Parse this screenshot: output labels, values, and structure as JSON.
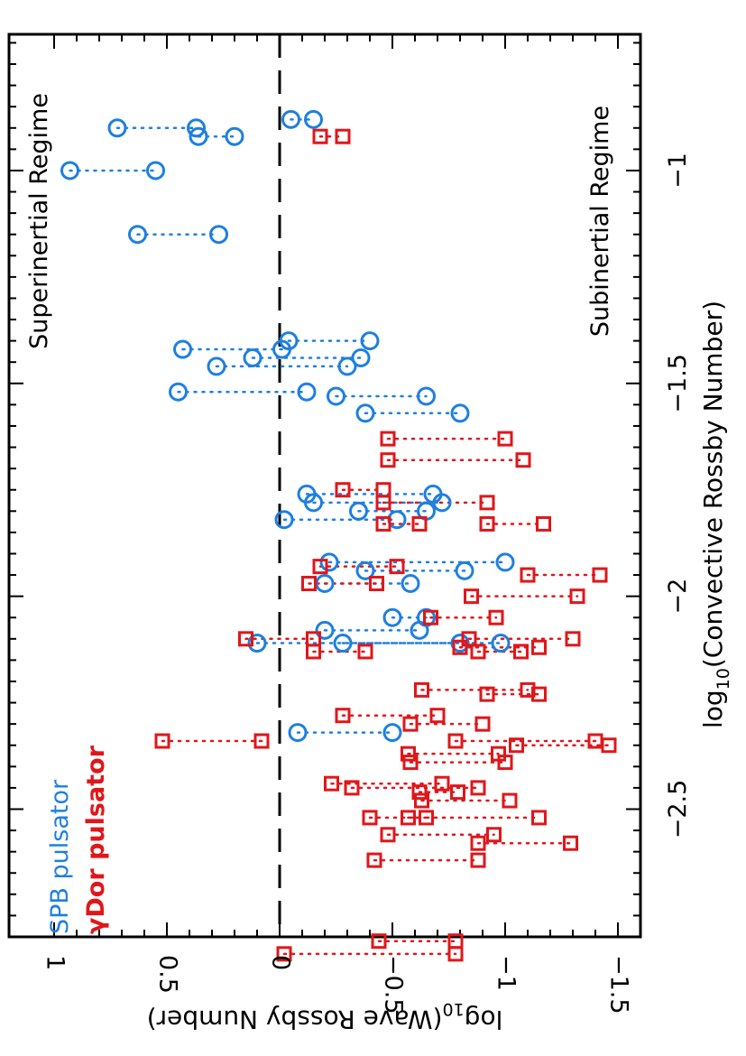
{
  "chart_data": {
    "type": "scatter",
    "orientation": "rotated-90-clockwise",
    "xlabel": "log10(Convective Rossby Number)",
    "ylabel": "log10(Wave Rossby Number)",
    "xlabel_parts": {
      "base": "log",
      "sub": "10",
      "rest": "(Convective  Rossby  Number)"
    },
    "ylabel_parts": {
      "base": "log",
      "sub": "10",
      "rest": "(Wave  Rossby  Number)"
    },
    "xlim": [
      -2.8,
      -0.68
    ],
    "ylim": [
      -1.6,
      1.2
    ],
    "x_ticks": [
      "-2.5",
      "-2",
      "-1.5",
      "-1"
    ],
    "x_tick_values": [
      -2.5,
      -2,
      -1.5,
      -1
    ],
    "y_ticks": [
      "1",
      "0.5",
      "0",
      "-0.5",
      "-1",
      "-1.5"
    ],
    "y_tick_values": [
      1,
      0.5,
      0,
      -0.5,
      -1,
      -1.5
    ],
    "grid": false,
    "reference_line": {
      "y": 0,
      "style": "dashed",
      "color": "#000000"
    },
    "annotations": [
      "Superinertial  Regime",
      "Subinertial  Regime"
    ],
    "legend": {
      "placement": "bottom-left",
      "entries": [
        {
          "label": "SPB  pulsator",
          "color": "#1e7fe0"
        },
        {
          "label": "γDor  pulsator",
          "color": "#e0161a"
        }
      ]
    },
    "series": [
      {
        "name": "SPB  pulsator",
        "marker": "circle",
        "color": "#1e7fe0",
        "pairs": [
          {
            "x": -0.88,
            "y": [
              -0.05,
              -0.15
            ]
          },
          {
            "x": -0.9,
            "y": [
              0.72,
              0.37
            ]
          },
          {
            "x": -0.92,
            "y": [
              0.36,
              0.2
            ]
          },
          {
            "x": -1.0,
            "y": [
              0.93,
              0.55
            ]
          },
          {
            "x": -1.15,
            "y": [
              0.63,
              0.27
            ]
          },
          {
            "x": -1.4,
            "y": [
              -0.04,
              -0.4
            ]
          },
          {
            "x": -1.42,
            "y": [
              0.43,
              -0.01
            ]
          },
          {
            "x": -1.44,
            "y": [
              0.12,
              -0.36
            ]
          },
          {
            "x": -1.46,
            "y": [
              0.28,
              -0.3
            ]
          },
          {
            "x": -1.52,
            "y": [
              0.45,
              -0.12
            ]
          },
          {
            "x": -1.53,
            "y": [
              -0.25,
              -0.65
            ]
          },
          {
            "x": -1.57,
            "y": [
              -0.38,
              -0.8
            ]
          },
          {
            "x": -1.76,
            "y": [
              -0.12,
              -0.68
            ]
          },
          {
            "x": -1.78,
            "y": [
              -0.15,
              -0.72
            ]
          },
          {
            "x": -1.8,
            "y": [
              -0.35,
              -0.65
            ]
          },
          {
            "x": -1.82,
            "y": [
              -0.02,
              -0.52
            ]
          },
          {
            "x": -1.92,
            "y": [
              -0.22,
              -1.0
            ]
          },
          {
            "x": -1.94,
            "y": [
              -0.38,
              -0.82
            ]
          },
          {
            "x": -1.97,
            "y": [
              -0.2,
              -0.58
            ]
          },
          {
            "x": -2.05,
            "y": [
              -0.5,
              -0.65
            ]
          },
          {
            "x": -2.08,
            "y": [
              -0.2,
              -0.62
            ]
          },
          {
            "x": -2.11,
            "y": [
              0.1,
              -0.8
            ]
          },
          {
            "x": -2.11,
            "y": [
              -0.28,
              -0.98
            ]
          },
          {
            "x": -2.32,
            "y": [
              -0.08,
              -0.5
            ]
          }
        ]
      },
      {
        "name": "γDor  pulsator",
        "marker": "square",
        "color": "#e0161a",
        "pairs": [
          {
            "x": -0.92,
            "y": [
              -0.18,
              -0.28
            ]
          },
          {
            "x": -1.63,
            "y": [
              -0.48,
              -1.0
            ]
          },
          {
            "x": -1.68,
            "y": [
              -0.48,
              -1.08
            ]
          },
          {
            "x": -1.75,
            "y": [
              -0.28,
              -0.46
            ]
          },
          {
            "x": -1.78,
            "y": [
              -0.46,
              -0.92
            ]
          },
          {
            "x": -1.83,
            "y": [
              -0.46,
              -0.62
            ]
          },
          {
            "x": -1.83,
            "y": [
              -0.92,
              -1.17
            ]
          },
          {
            "x": -1.93,
            "y": [
              -0.18,
              -0.52
            ]
          },
          {
            "x": -1.95,
            "y": [
              -1.1,
              -1.42
            ]
          },
          {
            "x": -1.97,
            "y": [
              -0.13,
              -0.43
            ]
          },
          {
            "x": -2.0,
            "y": [
              -0.85,
              -1.32
            ]
          },
          {
            "x": -2.05,
            "y": [
              -0.67,
              -0.96
            ]
          },
          {
            "x": -2.1,
            "y": [
              0.15,
              -0.15
            ]
          },
          {
            "x": -2.1,
            "y": [
              -0.84,
              -1.3
            ]
          },
          {
            "x": -2.12,
            "y": [
              -0.8,
              -1.15
            ]
          },
          {
            "x": -2.13,
            "y": [
              -0.15,
              -0.38
            ]
          },
          {
            "x": -2.13,
            "y": [
              -0.88,
              -1.07
            ]
          },
          {
            "x": -2.22,
            "y": [
              -0.63,
              -1.1
            ]
          },
          {
            "x": -2.23,
            "y": [
              -0.92,
              -1.15
            ]
          },
          {
            "x": -2.28,
            "y": [
              -0.28,
              -0.7
            ]
          },
          {
            "x": -2.3,
            "y": [
              -0.58,
              -0.9
            ]
          },
          {
            "x": -2.34,
            "y": [
              0.52,
              0.08
            ]
          },
          {
            "x": -2.34,
            "y": [
              -0.78,
              -1.4
            ]
          },
          {
            "x": -2.35,
            "y": [
              -1.05,
              -1.46
            ]
          },
          {
            "x": -2.37,
            "y": [
              -0.57,
              -0.97
            ]
          },
          {
            "x": -2.39,
            "y": [
              -0.58,
              -1.0
            ]
          },
          {
            "x": -2.44,
            "y": [
              -0.23,
              -0.72
            ]
          },
          {
            "x": -2.45,
            "y": [
              -0.32,
              -0.88
            ]
          },
          {
            "x": -2.46,
            "y": [
              -0.62,
              -0.79
            ]
          },
          {
            "x": -2.48,
            "y": [
              -0.63,
              -1.02
            ]
          },
          {
            "x": -2.52,
            "y": [
              -0.4,
              -1.15
            ]
          },
          {
            "x": -2.52,
            "y": [
              -0.57,
              -0.65
            ]
          },
          {
            "x": -2.56,
            "y": [
              -0.48,
              -0.95
            ]
          },
          {
            "x": -2.58,
            "y": [
              -0.88,
              -1.29
            ]
          },
          {
            "x": -2.62,
            "y": [
              -0.42,
              -0.88
            ]
          },
          {
            "x": -2.81,
            "y": [
              -0.44,
              -0.78
            ]
          },
          {
            "x": -2.84,
            "y": [
              -0.02,
              -0.78
            ]
          }
        ]
      }
    ]
  }
}
